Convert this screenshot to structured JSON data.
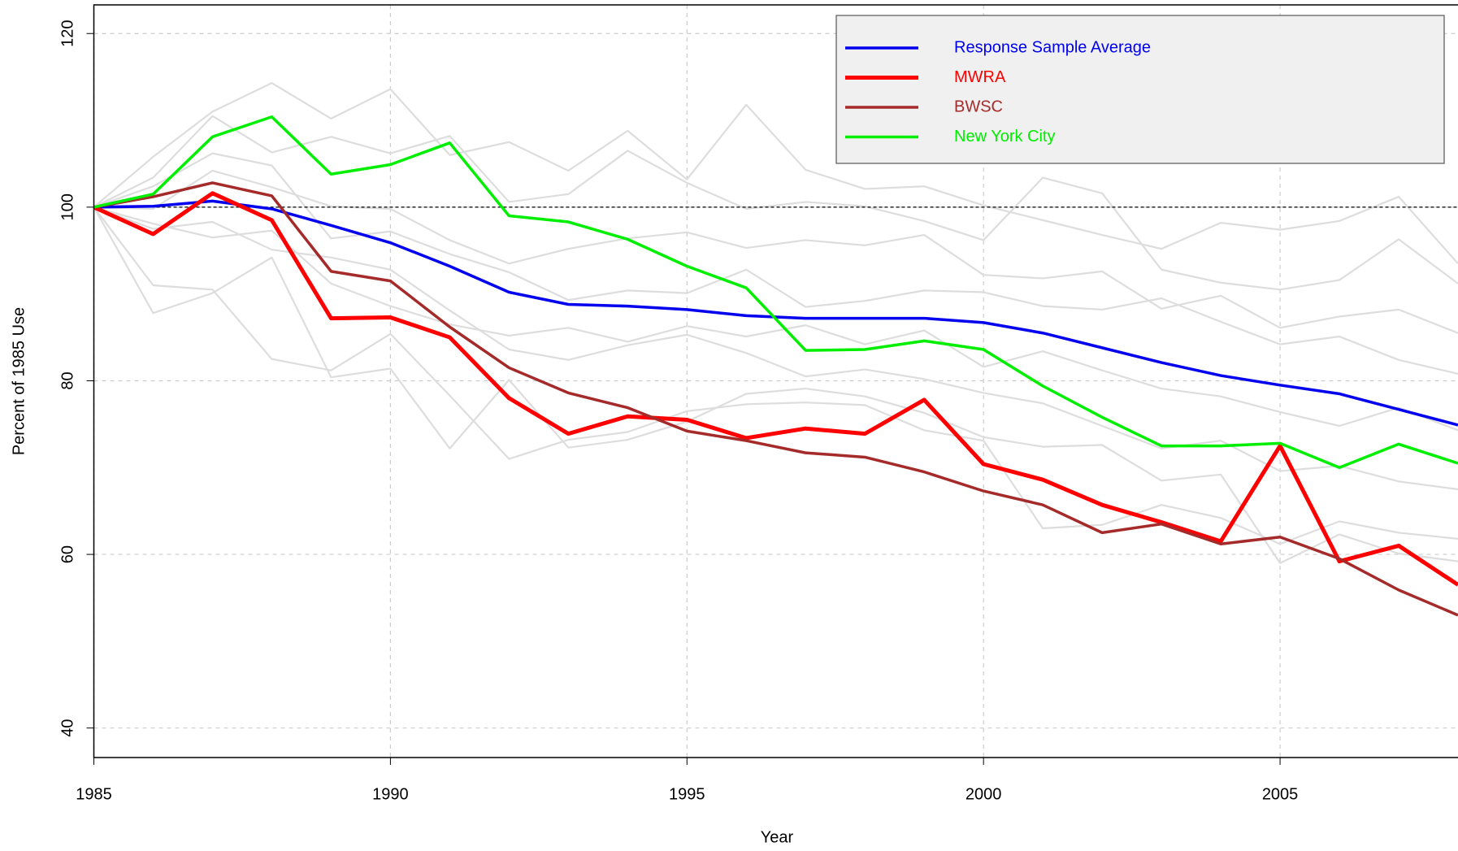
{
  "chart_data": {
    "type": "line",
    "x_label": "Year",
    "y_label": "Percent of 1985 Use",
    "x": [
      1985,
      1986,
      1987,
      1988,
      1989,
      1990,
      1991,
      1992,
      1993,
      1994,
      1995,
      1996,
      1997,
      1998,
      1999,
      2000,
      2001,
      2002,
      2003,
      2004,
      2005,
      2006,
      2007,
      2008
    ],
    "xlim": [
      1985,
      2008
    ],
    "xticks": [
      1985,
      1990,
      1995,
      2000,
      2005
    ],
    "ylim": [
      36.6,
      123.3
    ],
    "yticks": [
      40,
      60,
      80,
      100,
      120
    ],
    "grid": true,
    "reference_line": 100,
    "legend": "topright",
    "background_series": [
      {
        "color": "#dddddd",
        "values": [
          100,
          105.8,
          111,
          114.3,
          110.2,
          113.6,
          106,
          107.5,
          104.2,
          108.8,
          103.2,
          111.8,
          104.3,
          102.1,
          102.4,
          100.2,
          98.5,
          96.8,
          95.2,
          98.2,
          97.4,
          98.4,
          101.2,
          93.5
        ]
      },
      {
        "color": "#dddddd",
        "values": [
          100,
          103.4,
          110.5,
          106.3,
          108.1,
          106.2,
          108.2,
          100.6,
          101.5,
          106.5,
          102.8,
          99.8,
          100.6,
          100.1,
          98.4,
          96.2,
          103.4,
          101.6,
          92.8,
          91.3,
          90.5,
          91.6,
          96.3,
          91.2
        ]
      },
      {
        "color": "#dddddd",
        "values": [
          100,
          99.8,
          104.2,
          102.3,
          100.1,
          99.8,
          96.2,
          93.5,
          95.2,
          96.4,
          97.1,
          95.3,
          96.2,
          95.6,
          96.8,
          92.2,
          91.8,
          92.6,
          88.3,
          89.8,
          86.1,
          87.4,
          88.2,
          85.5
        ]
      },
      {
        "color": "#dddddd",
        "values": [
          100,
          97.5,
          98.3,
          95.1,
          94.2,
          92.8,
          88.1,
          83.6,
          82.4,
          84.1,
          85.3,
          83.2,
          80.5,
          81.3,
          80.2,
          78.6,
          77.4,
          74.8,
          72.2,
          73.1,
          69.6,
          70.2,
          68.4,
          67.5
        ]
      },
      {
        "color": "#dddddd",
        "values": [
          100,
          87.8,
          90.1,
          94.2,
          80.4,
          81.4,
          72.2,
          80.1,
          72.3,
          73.2,
          75.3,
          78.5,
          79.1,
          78.2,
          76.3,
          73.5,
          72.4,
          72.6,
          68.5,
          69.2,
          59,
          62.3,
          60.1,
          59.2
        ]
      },
      {
        "color": "#dddddd",
        "values": [
          100,
          91,
          90.5,
          82.5,
          81.2,
          85.4,
          78.3,
          71,
          73.2,
          74.1,
          76.5,
          77.3,
          77.5,
          77.2,
          74.3,
          73.1,
          63,
          63.4,
          65.7,
          64.2,
          61.2,
          63.8,
          62.5,
          61.8
        ]
      },
      {
        "color": "#dddddd",
        "values": [
          100,
          102.4,
          106.2,
          104.8,
          96.4,
          97.2,
          94.6,
          92.5,
          89.3,
          90.4,
          90.1,
          92.8,
          88.5,
          89.2,
          90.4,
          90.2,
          88.6,
          88.2,
          89.5,
          86.8,
          84.2,
          85.1,
          82.4,
          80.8
        ]
      },
      {
        "color": "#dddddd",
        "values": [
          100,
          98.1,
          96.5,
          97.3,
          91.2,
          88.6,
          86.5,
          85.2,
          86.1,
          84.5,
          86.3,
          85.1,
          86.4,
          84.2,
          85.8,
          81.6,
          83.4,
          81.2,
          79.1,
          78.2,
          76.4,
          74.8,
          76.9,
          74.3
        ]
      }
    ],
    "series": [
      {
        "name": "Response Sample Average",
        "color": "#0000ee",
        "width": 3.5,
        "values": [
          100,
          100.1,
          100.7,
          99.8,
          97.9,
          95.9,
          93.2,
          90.2,
          88.8,
          88.6,
          88.2,
          87.5,
          87.2,
          87.2,
          87.2,
          86.7,
          85.5,
          83.8,
          82.1,
          80.6,
          79.5,
          78.5,
          76.7,
          74.9
        ]
      },
      {
        "name": "MWRA",
        "color": "#ff0000",
        "width": 5,
        "values": [
          100,
          96.9,
          101.6,
          98.5,
          87.2,
          87.3,
          85.0,
          78.0,
          73.9,
          75.9,
          75.5,
          73.4,
          74.5,
          73.9,
          77.8,
          70.4,
          68.6,
          65.7,
          63.7,
          61.5,
          72.5,
          59.2,
          61.0,
          56.5
        ]
      },
      {
        "name": "BWSC",
        "color": "#a52a2a",
        "width": 3.5,
        "values": [
          100,
          101.2,
          102.8,
          101.3,
          92.6,
          91.5,
          86.2,
          81.5,
          78.6,
          76.9,
          74.2,
          73.1,
          71.7,
          71.2,
          69.5,
          67.3,
          65.7,
          62.5,
          63.5,
          61.2,
          62.0,
          59.5,
          55.9,
          53.0
        ]
      },
      {
        "name": "New York City",
        "color": "#00ee00",
        "width": 3.5,
        "values": [
          100,
          101.5,
          108.1,
          110.4,
          103.8,
          104.9,
          107.4,
          99.0,
          98.3,
          96.3,
          93.2,
          90.7,
          83.5,
          83.6,
          84.6,
          83.6,
          79.4,
          75.8,
          72.5,
          72.5,
          72.8,
          70.0,
          72.7,
          70.5
        ]
      }
    ]
  }
}
